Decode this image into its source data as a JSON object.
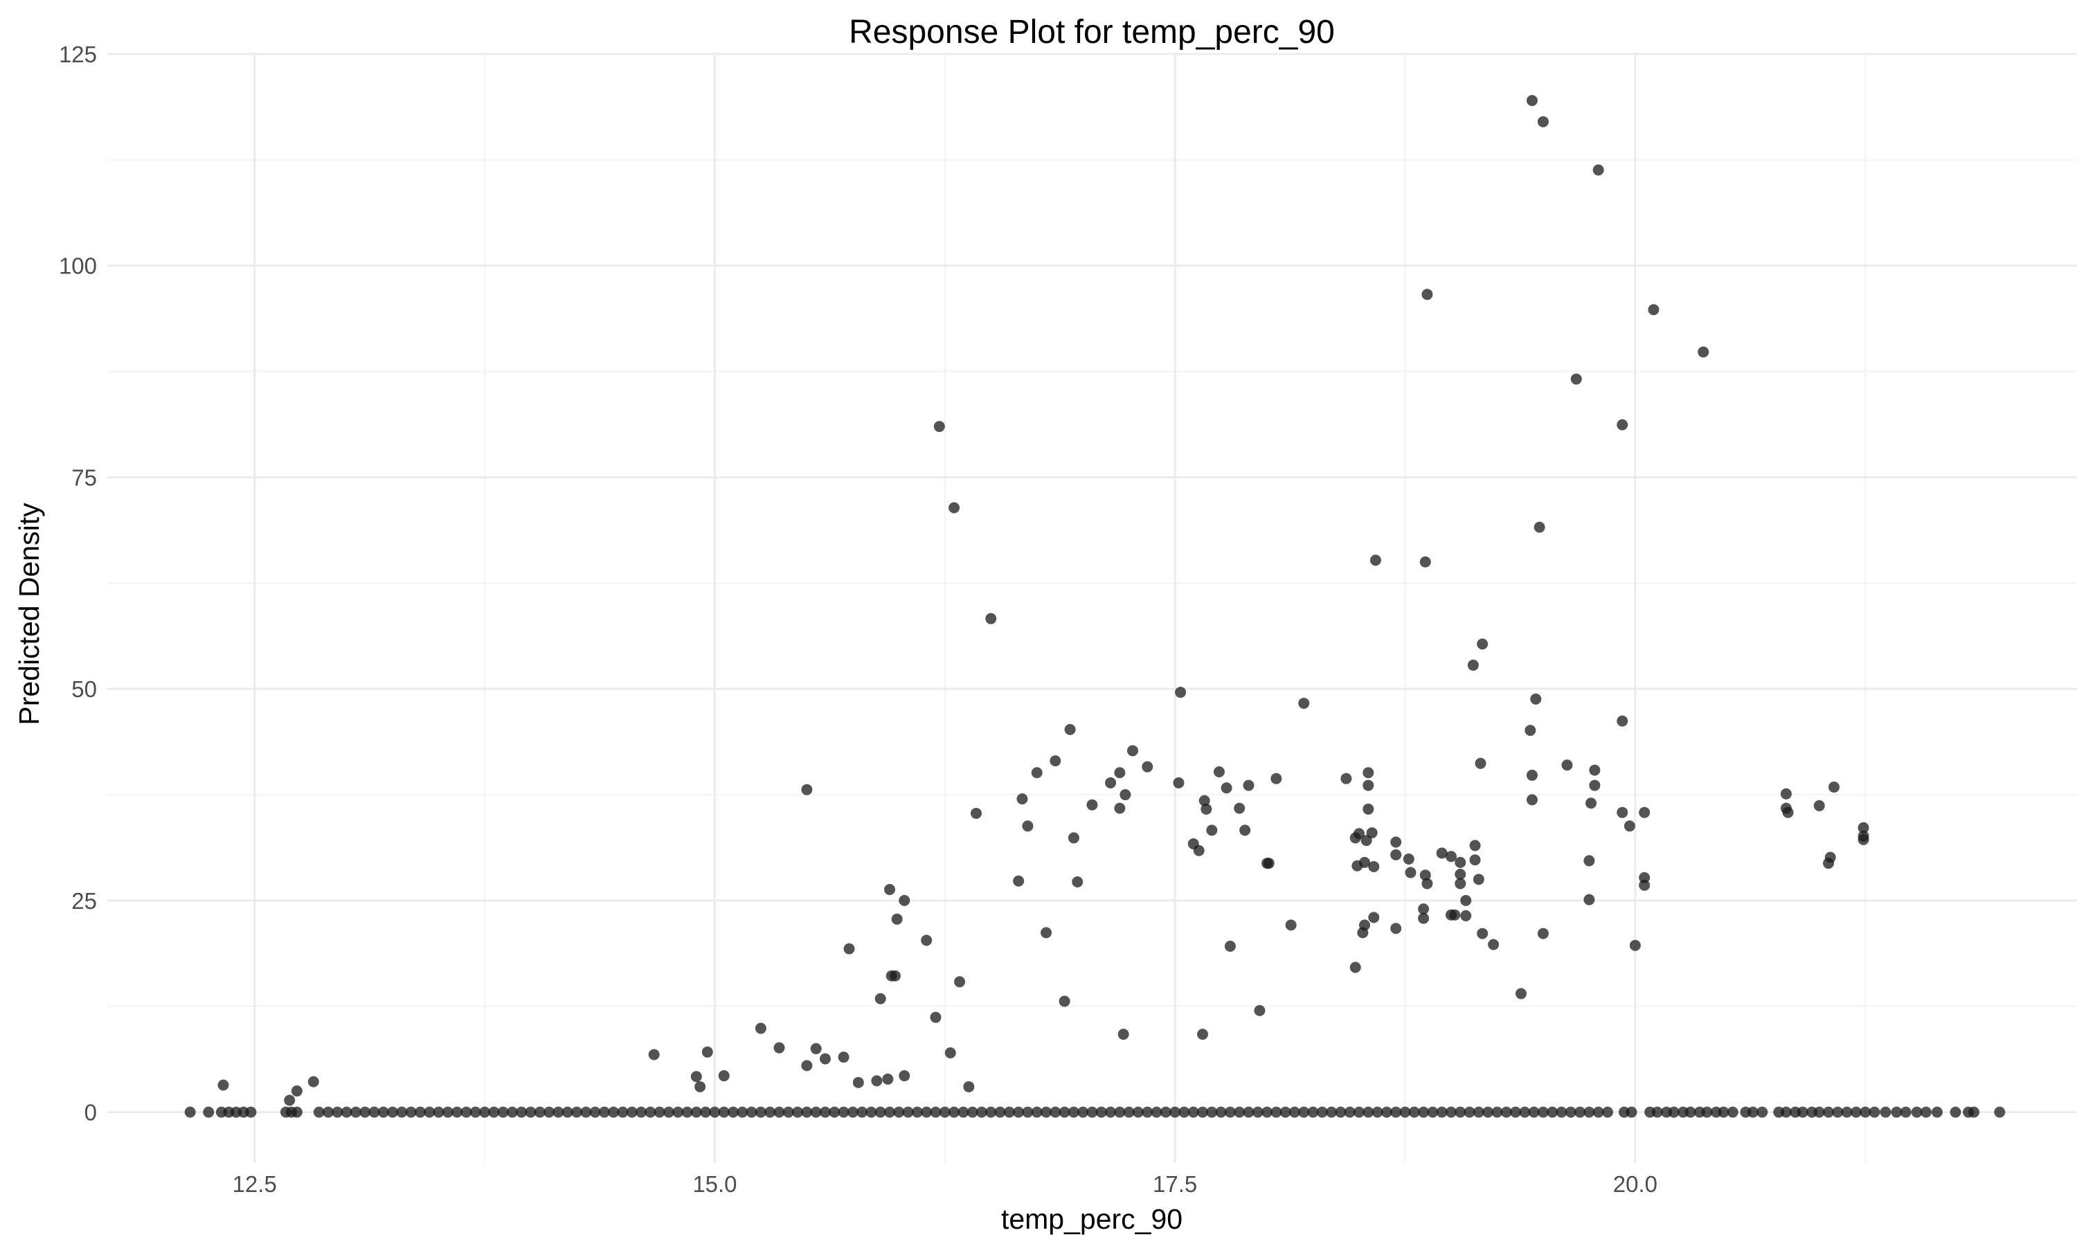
{
  "chart_data": {
    "type": "scatter",
    "title": "Response Plot for temp_perc_90",
    "xlabel": "temp_perc_90",
    "ylabel": "Predicted Density",
    "xlim": [
      11.7,
      22.4
    ],
    "ylim": [
      -6,
      125
    ],
    "x_ticks": [
      12.5,
      15.0,
      17.5,
      20.0
    ],
    "x_tick_labels": [
      "12.5",
      "15.0",
      "17.5",
      "20.0"
    ],
    "y_ticks": [
      0,
      25,
      50,
      75,
      100,
      125
    ],
    "y_tick_labels": [
      "0",
      "25",
      "50",
      "75",
      "100",
      "125"
    ],
    "grid": true,
    "legend": "none",
    "point_color": "#1a1a1a",
    "background": "#ffffff",
    "zero_points_x": [
      12.15,
      12.25,
      12.32,
      12.36,
      12.4,
      12.44,
      12.48,
      12.67,
      12.7,
      12.73,
      12.85,
      12.9,
      12.95,
      13.0,
      13.05,
      13.1,
      13.15,
      13.2,
      13.25,
      13.3,
      13.35,
      13.4,
      13.45,
      13.5,
      13.55,
      13.6,
      13.65,
      13.7,
      13.75,
      13.8,
      13.85,
      13.9,
      13.95,
      14.0,
      14.05,
      14.1,
      14.15,
      14.2,
      14.25,
      14.3,
      14.35,
      14.4,
      14.45,
      14.5,
      14.55,
      14.6,
      14.65,
      14.7,
      14.75,
      14.8,
      14.85,
      14.9,
      14.95,
      15.0,
      15.05,
      15.1,
      15.15,
      15.2,
      15.25,
      15.3,
      15.35,
      15.4,
      15.45,
      15.5,
      15.55,
      15.6,
      15.65,
      15.7,
      15.75,
      15.8,
      15.85,
      15.9,
      15.95,
      16.0,
      16.05,
      16.1,
      16.15,
      16.2,
      16.25,
      16.3,
      16.35,
      16.4,
      16.45,
      16.5,
      16.55,
      16.6,
      16.65,
      16.7,
      16.75,
      16.8,
      16.85,
      16.9,
      16.95,
      17.0,
      17.05,
      17.1,
      17.15,
      17.2,
      17.25,
      17.3,
      17.35,
      17.4,
      17.45,
      17.5,
      17.55,
      17.6,
      17.65,
      17.7,
      17.75,
      17.8,
      17.85,
      17.9,
      17.95,
      18.0,
      18.05,
      18.1,
      18.15,
      18.2,
      18.25,
      18.3,
      18.35,
      18.4,
      18.45,
      18.5,
      18.55,
      18.6,
      18.65,
      18.7,
      18.75,
      18.8,
      18.85,
      18.9,
      18.95,
      19.0,
      19.05,
      19.1,
      19.15,
      19.2,
      19.25,
      19.3,
      19.35,
      19.4,
      19.45,
      19.5,
      19.55,
      19.6,
      19.65,
      19.7,
      19.75,
      19.8,
      19.85,
      19.94,
      19.98,
      20.08,
      20.12,
      20.17,
      20.21,
      20.26,
      20.3,
      20.35,
      20.39,
      20.44,
      20.48,
      20.53,
      20.6,
      20.64,
      20.69,
      20.78,
      20.82,
      20.87,
      20.91,
      20.96,
      21.0,
      21.05,
      21.1,
      21.15,
      21.2,
      21.25,
      21.3,
      21.36,
      21.42,
      21.47,
      21.53,
      21.58,
      21.64,
      21.74,
      21.81,
      21.84,
      21.98
    ],
    "points": [
      [
        12.33,
        3.2
      ],
      [
        12.69,
        1.4
      ],
      [
        12.73,
        2.5
      ],
      [
        12.82,
        3.6
      ],
      [
        14.67,
        6.8
      ],
      [
        14.9,
        4.2
      ],
      [
        14.92,
        3.0
      ],
      [
        14.96,
        7.1
      ],
      [
        15.05,
        4.3
      ],
      [
        15.25,
        9.9
      ],
      [
        15.35,
        7.6
      ],
      [
        15.5,
        5.5
      ],
      [
        15.55,
        7.5
      ],
      [
        15.6,
        6.3
      ],
      [
        15.7,
        6.5
      ],
      [
        15.78,
        3.5
      ],
      [
        15.88,
        3.7
      ],
      [
        15.94,
        3.9
      ],
      [
        16.03,
        4.3
      ],
      [
        15.5,
        38.1
      ],
      [
        15.73,
        19.3
      ],
      [
        15.9,
        13.4
      ],
      [
        15.95,
        26.3
      ],
      [
        15.96,
        16.1
      ],
      [
        15.98,
        16.1
      ],
      [
        15.99,
        22.8
      ],
      [
        16.03,
        25.0
      ],
      [
        16.15,
        20.3
      ],
      [
        16.2,
        11.2
      ],
      [
        16.28,
        7.0
      ],
      [
        16.33,
        15.4
      ],
      [
        16.38,
        3.0
      ],
      [
        16.42,
        35.3
      ],
      [
        16.22,
        81.0
      ],
      [
        16.3,
        71.4
      ],
      [
        16.5,
        58.3
      ],
      [
        16.65,
        27.3
      ],
      [
        16.67,
        37.0
      ],
      [
        16.7,
        33.8
      ],
      [
        16.75,
        40.1
      ],
      [
        16.8,
        21.2
      ],
      [
        16.85,
        41.5
      ],
      [
        16.9,
        13.1
      ],
      [
        16.93,
        45.2
      ],
      [
        16.95,
        32.4
      ],
      [
        16.97,
        27.2
      ],
      [
        17.05,
        36.3
      ],
      [
        17.15,
        38.9
      ],
      [
        17.2,
        40.1
      ],
      [
        17.2,
        35.9
      ],
      [
        17.22,
        9.2
      ],
      [
        17.23,
        37.5
      ],
      [
        17.27,
        42.7
      ],
      [
        17.35,
        40.8
      ],
      [
        17.52,
        38.9
      ],
      [
        17.53,
        49.6
      ],
      [
        17.6,
        31.7
      ],
      [
        17.63,
        30.9
      ],
      [
        17.65,
        9.2
      ],
      [
        17.66,
        36.8
      ],
      [
        17.67,
        35.8
      ],
      [
        17.7,
        33.3
      ],
      [
        17.74,
        40.2
      ],
      [
        17.78,
        38.3
      ],
      [
        17.8,
        19.6
      ],
      [
        17.85,
        35.9
      ],
      [
        17.88,
        33.3
      ],
      [
        17.9,
        38.6
      ],
      [
        17.96,
        12.0
      ],
      [
        18.0,
        29.4
      ],
      [
        18.01,
        29.4
      ],
      [
        18.05,
        39.4
      ],
      [
        18.13,
        22.1
      ],
      [
        18.2,
        48.3
      ],
      [
        18.43,
        39.4
      ],
      [
        18.48,
        17.1
      ],
      [
        18.48,
        32.4
      ],
      [
        18.49,
        29.1
      ],
      [
        18.5,
        32.9
      ],
      [
        18.52,
        21.2
      ],
      [
        18.53,
        29.5
      ],
      [
        18.53,
        22.1
      ],
      [
        18.54,
        32.1
      ],
      [
        18.55,
        40.1
      ],
      [
        18.55,
        38.6
      ],
      [
        18.55,
        35.8
      ],
      [
        18.57,
        33.0
      ],
      [
        18.58,
        29.0
      ],
      [
        18.58,
        23.0
      ],
      [
        18.59,
        65.2
      ],
      [
        18.7,
        30.4
      ],
      [
        18.7,
        31.9
      ],
      [
        18.7,
        21.7
      ],
      [
        18.77,
        29.9
      ],
      [
        18.78,
        28.3
      ],
      [
        18.85,
        22.9
      ],
      [
        18.85,
        24.0
      ],
      [
        18.86,
        28.0
      ],
      [
        18.87,
        27.0
      ],
      [
        18.86,
        65.0
      ],
      [
        18.87,
        96.6
      ],
      [
        18.95,
        30.6
      ],
      [
        19.0,
        30.2
      ],
      [
        19.0,
        23.3
      ],
      [
        19.02,
        23.3
      ],
      [
        19.05,
        29.5
      ],
      [
        19.05,
        28.1
      ],
      [
        19.05,
        27.0
      ],
      [
        19.08,
        25.0
      ],
      [
        19.08,
        23.2
      ],
      [
        19.12,
        52.8
      ],
      [
        19.13,
        31.5
      ],
      [
        19.13,
        29.8
      ],
      [
        19.15,
        27.5
      ],
      [
        19.16,
        41.2
      ],
      [
        19.17,
        55.3
      ],
      [
        19.17,
        21.1
      ],
      [
        19.23,
        19.8
      ],
      [
        19.38,
        14.0
      ],
      [
        19.43,
        45.1
      ],
      [
        19.44,
        39.8
      ],
      [
        19.44,
        36.9
      ],
      [
        19.46,
        48.8
      ],
      [
        19.48,
        69.1
      ],
      [
        19.5,
        21.1
      ],
      [
        19.44,
        119.5
      ],
      [
        19.5,
        117.0
      ],
      [
        19.63,
        41.0
      ],
      [
        19.68,
        86.6
      ],
      [
        19.75,
        29.7
      ],
      [
        19.75,
        25.1
      ],
      [
        19.76,
        36.5
      ],
      [
        19.78,
        40.4
      ],
      [
        19.78,
        38.6
      ],
      [
        19.8,
        111.3
      ],
      [
        19.93,
        46.2
      ],
      [
        19.93,
        81.2
      ],
      [
        19.93,
        35.4
      ],
      [
        19.97,
        33.8
      ],
      [
        20.0,
        19.7
      ],
      [
        20.05,
        27.7
      ],
      [
        20.05,
        26.8
      ],
      [
        20.05,
        35.4
      ],
      [
        20.1,
        94.8
      ],
      [
        20.37,
        89.8
      ],
      [
        20.82,
        37.6
      ],
      [
        20.82,
        35.9
      ],
      [
        20.83,
        35.4
      ],
      [
        21.0,
        36.2
      ],
      [
        21.05,
        29.4
      ],
      [
        21.06,
        30.1
      ],
      [
        21.08,
        38.4
      ],
      [
        21.24,
        33.6
      ],
      [
        21.24,
        32.6
      ],
      [
        21.24,
        32.2
      ]
    ]
  }
}
